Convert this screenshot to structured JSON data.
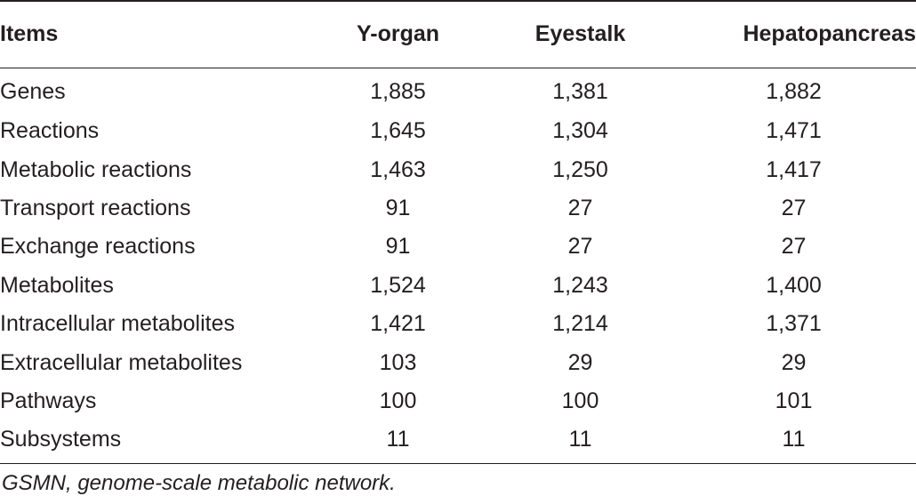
{
  "table": {
    "headers": [
      "Items",
      "Y-organ",
      "Eyestalk",
      "Hepatopancreas"
    ],
    "rows": [
      {
        "item": "Genes",
        "y_organ": "1,885",
        "eyestalk": "1,381",
        "hepatopancreas": "1,882"
      },
      {
        "item": "Reactions",
        "y_organ": "1,645",
        "eyestalk": "1,304",
        "hepatopancreas": "1,471"
      },
      {
        "item": "Metabolic reactions",
        "y_organ": "1,463",
        "eyestalk": "1,250",
        "hepatopancreas": "1,417"
      },
      {
        "item": "Transport reactions",
        "y_organ": "91",
        "eyestalk": "27",
        "hepatopancreas": "27"
      },
      {
        "item": "Exchange reactions",
        "y_organ": "91",
        "eyestalk": "27",
        "hepatopancreas": "27"
      },
      {
        "item": "Metabolites",
        "y_organ": "1,524",
        "eyestalk": "1,243",
        "hepatopancreas": "1,400"
      },
      {
        "item": "Intracellular metabolites",
        "y_organ": "1,421",
        "eyestalk": "1,214",
        "hepatopancreas": "1,371"
      },
      {
        "item": "Extracellular metabolites",
        "y_organ": "103",
        "eyestalk": "29",
        "hepatopancreas": "29"
      },
      {
        "item": "Pathways",
        "y_organ": "100",
        "eyestalk": "100",
        "hepatopancreas": "101"
      },
      {
        "item": "Subsystems",
        "y_organ": "11",
        "eyestalk": "11",
        "hepatopancreas": "11"
      }
    ]
  },
  "footnote": "GSMN, genome-scale metabolic network."
}
